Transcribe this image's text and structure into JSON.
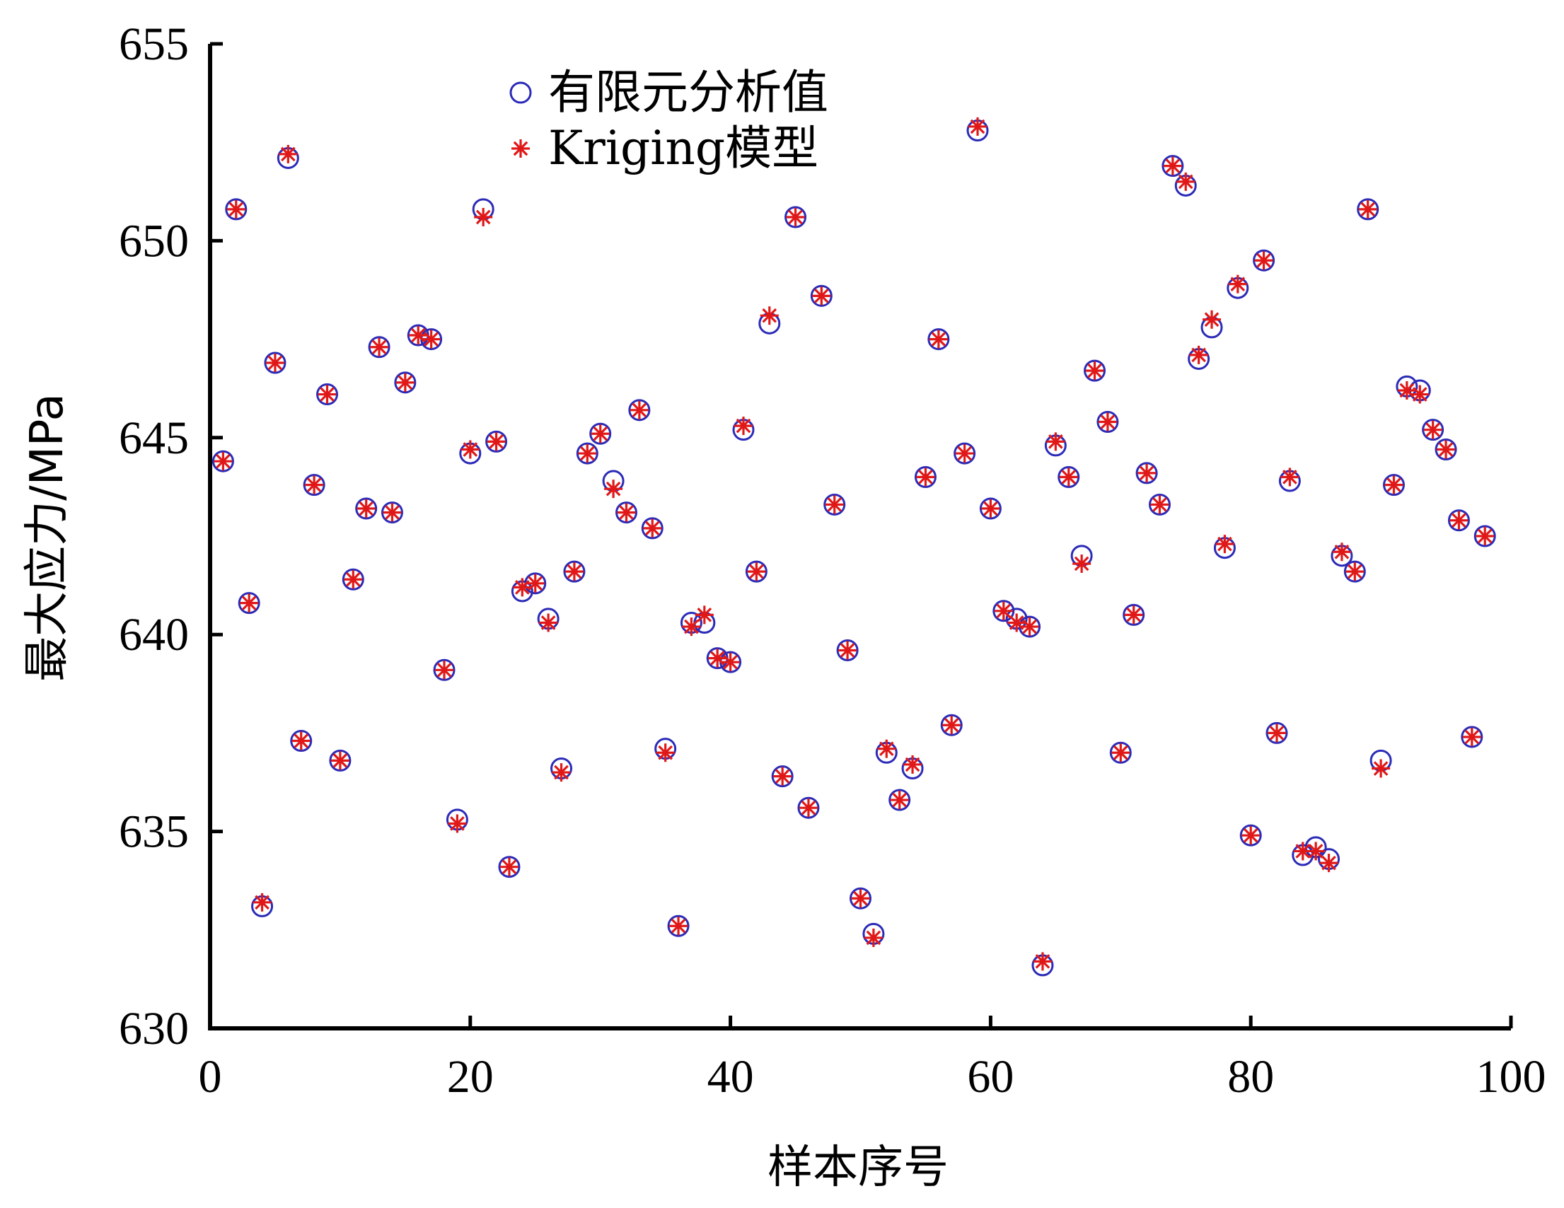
{
  "chart_data": {
    "type": "scatter",
    "xlabel": "样本序号",
    "ylabel": "最大应力/MPa",
    "xlim": [
      0,
      100
    ],
    "ylim": [
      630,
      655
    ],
    "xticks": [
      0,
      20,
      40,
      60,
      80,
      100
    ],
    "yticks": [
      630,
      635,
      640,
      645,
      650,
      655
    ],
    "grid": false,
    "legend_position": "top-left",
    "series": [
      {
        "name": "有限元分析值",
        "marker": "circle",
        "color": "#2b2bb8",
        "points": [
          [
            1,
            644.4
          ],
          [
            2,
            650.8
          ],
          [
            3,
            640.8
          ],
          [
            4,
            633.1
          ],
          [
            5,
            646.9
          ],
          [
            6,
            652.1
          ],
          [
            7,
            637.3
          ],
          [
            8,
            643.8
          ],
          [
            9,
            646.1
          ],
          [
            10,
            636.8
          ],
          [
            11,
            641.4
          ],
          [
            12,
            643.2
          ],
          [
            13,
            647.3
          ],
          [
            14,
            643.1
          ],
          [
            15,
            646.4
          ],
          [
            16,
            647.6
          ],
          [
            17,
            647.5
          ],
          [
            18,
            639.1
          ],
          [
            19,
            635.3
          ],
          [
            20,
            644.6
          ],
          [
            21,
            650.8
          ],
          [
            22,
            644.9
          ],
          [
            23,
            634.1
          ],
          [
            24,
            641.1
          ],
          [
            25,
            641.3
          ],
          [
            26,
            640.4
          ],
          [
            27,
            636.6
          ],
          [
            28,
            641.6
          ],
          [
            29,
            644.6
          ],
          [
            30,
            645.1
          ],
          [
            31,
            643.9
          ],
          [
            32,
            643.1
          ],
          [
            33,
            645.7
          ],
          [
            34,
            642.7
          ],
          [
            35,
            637.1
          ],
          [
            36,
            632.6
          ],
          [
            37,
            640.3
          ],
          [
            38,
            640.3
          ],
          [
            39,
            639.4
          ],
          [
            40,
            639.3
          ],
          [
            41,
            645.2
          ],
          [
            42,
            641.6
          ],
          [
            43,
            647.9
          ],
          [
            44,
            636.4
          ],
          [
            45,
            650.6
          ],
          [
            46,
            635.6
          ],
          [
            47,
            648.6
          ],
          [
            48,
            643.3
          ],
          [
            49,
            639.6
          ],
          [
            50,
            633.3
          ],
          [
            51,
            632.4
          ],
          [
            52,
            637.0
          ],
          [
            53,
            635.8
          ],
          [
            54,
            636.6
          ],
          [
            55,
            644.0
          ],
          [
            56,
            647.5
          ],
          [
            57,
            637.7
          ],
          [
            58,
            644.6
          ],
          [
            59,
            652.8
          ],
          [
            60,
            643.2
          ],
          [
            61,
            640.6
          ],
          [
            62,
            640.4
          ],
          [
            63,
            640.2
          ],
          [
            64,
            631.6
          ],
          [
            65,
            644.8
          ],
          [
            66,
            644.0
          ],
          [
            67,
            642.0
          ],
          [
            68,
            646.7
          ],
          [
            69,
            645.4
          ],
          [
            70,
            637.0
          ],
          [
            71,
            640.5
          ],
          [
            72,
            644.1
          ],
          [
            73,
            643.3
          ],
          [
            74,
            651.9
          ],
          [
            75,
            651.4
          ],
          [
            76,
            647.0
          ],
          [
            77,
            647.8
          ],
          [
            78,
            642.2
          ],
          [
            79,
            648.8
          ],
          [
            80,
            634.9
          ],
          [
            81,
            649.5
          ],
          [
            82,
            637.5
          ],
          [
            83,
            643.9
          ],
          [
            84,
            634.4
          ],
          [
            85,
            634.6
          ],
          [
            86,
            634.3
          ],
          [
            87,
            642.0
          ],
          [
            88,
            641.6
          ],
          [
            89,
            650.8
          ],
          [
            90,
            636.8
          ],
          [
            91,
            643.8
          ],
          [
            92,
            646.3
          ],
          [
            93,
            646.2
          ],
          [
            94,
            645.2
          ],
          [
            95,
            644.7
          ],
          [
            96,
            642.9
          ],
          [
            97,
            637.4
          ],
          [
            98,
            642.5
          ]
        ]
      },
      {
        "name": "Kriging模型",
        "marker": "asterisk",
        "color": "#e01818",
        "points": [
          [
            1,
            644.4
          ],
          [
            2,
            650.8
          ],
          [
            3,
            640.8
          ],
          [
            4,
            633.2
          ],
          [
            5,
            646.9
          ],
          [
            6,
            652.2
          ],
          [
            7,
            637.3
          ],
          [
            8,
            643.8
          ],
          [
            9,
            646.1
          ],
          [
            10,
            636.8
          ],
          [
            11,
            641.4
          ],
          [
            12,
            643.2
          ],
          [
            13,
            647.3
          ],
          [
            14,
            643.1
          ],
          [
            15,
            646.4
          ],
          [
            16,
            647.6
          ],
          [
            17,
            647.5
          ],
          [
            18,
            639.1
          ],
          [
            19,
            635.2
          ],
          [
            20,
            644.7
          ],
          [
            21,
            650.6
          ],
          [
            22,
            644.9
          ],
          [
            23,
            634.1
          ],
          [
            24,
            641.2
          ],
          [
            25,
            641.3
          ],
          [
            26,
            640.3
          ],
          [
            27,
            636.5
          ],
          [
            28,
            641.6
          ],
          [
            29,
            644.6
          ],
          [
            30,
            645.1
          ],
          [
            31,
            643.7
          ],
          [
            32,
            643.1
          ],
          [
            33,
            645.7
          ],
          [
            34,
            642.7
          ],
          [
            35,
            637.0
          ],
          [
            36,
            632.6
          ],
          [
            37,
            640.2
          ],
          [
            38,
            640.5
          ],
          [
            39,
            639.4
          ],
          [
            40,
            639.3
          ],
          [
            41,
            645.3
          ],
          [
            42,
            641.6
          ],
          [
            43,
            648.1
          ],
          [
            44,
            636.4
          ],
          [
            45,
            650.6
          ],
          [
            46,
            635.6
          ],
          [
            47,
            648.6
          ],
          [
            48,
            643.3
          ],
          [
            49,
            639.6
          ],
          [
            50,
            633.3
          ],
          [
            51,
            632.3
          ],
          [
            52,
            637.1
          ],
          [
            53,
            635.8
          ],
          [
            54,
            636.7
          ],
          [
            55,
            644.0
          ],
          [
            56,
            647.5
          ],
          [
            57,
            637.7
          ],
          [
            58,
            644.6
          ],
          [
            59,
            652.9
          ],
          [
            60,
            643.2
          ],
          [
            61,
            640.6
          ],
          [
            62,
            640.3
          ],
          [
            63,
            640.2
          ],
          [
            64,
            631.7
          ],
          [
            65,
            644.9
          ],
          [
            66,
            644.0
          ],
          [
            67,
            641.8
          ],
          [
            68,
            646.7
          ],
          [
            69,
            645.4
          ],
          [
            70,
            637.0
          ],
          [
            71,
            640.5
          ],
          [
            72,
            644.1
          ],
          [
            73,
            643.3
          ],
          [
            74,
            651.9
          ],
          [
            75,
            651.5
          ],
          [
            76,
            647.1
          ],
          [
            77,
            648.0
          ],
          [
            78,
            642.3
          ],
          [
            79,
            648.9
          ],
          [
            80,
            634.9
          ],
          [
            81,
            649.5
          ],
          [
            82,
            637.5
          ],
          [
            83,
            644.0
          ],
          [
            84,
            634.5
          ],
          [
            85,
            634.5
          ],
          [
            86,
            634.2
          ],
          [
            87,
            642.1
          ],
          [
            88,
            641.6
          ],
          [
            89,
            650.8
          ],
          [
            90,
            636.6
          ],
          [
            91,
            643.8
          ],
          [
            92,
            646.2
          ],
          [
            93,
            646.1
          ],
          [
            94,
            645.2
          ],
          [
            95,
            644.7
          ],
          [
            96,
            642.9
          ],
          [
            97,
            637.4
          ],
          [
            98,
            642.5
          ]
        ]
      }
    ]
  }
}
